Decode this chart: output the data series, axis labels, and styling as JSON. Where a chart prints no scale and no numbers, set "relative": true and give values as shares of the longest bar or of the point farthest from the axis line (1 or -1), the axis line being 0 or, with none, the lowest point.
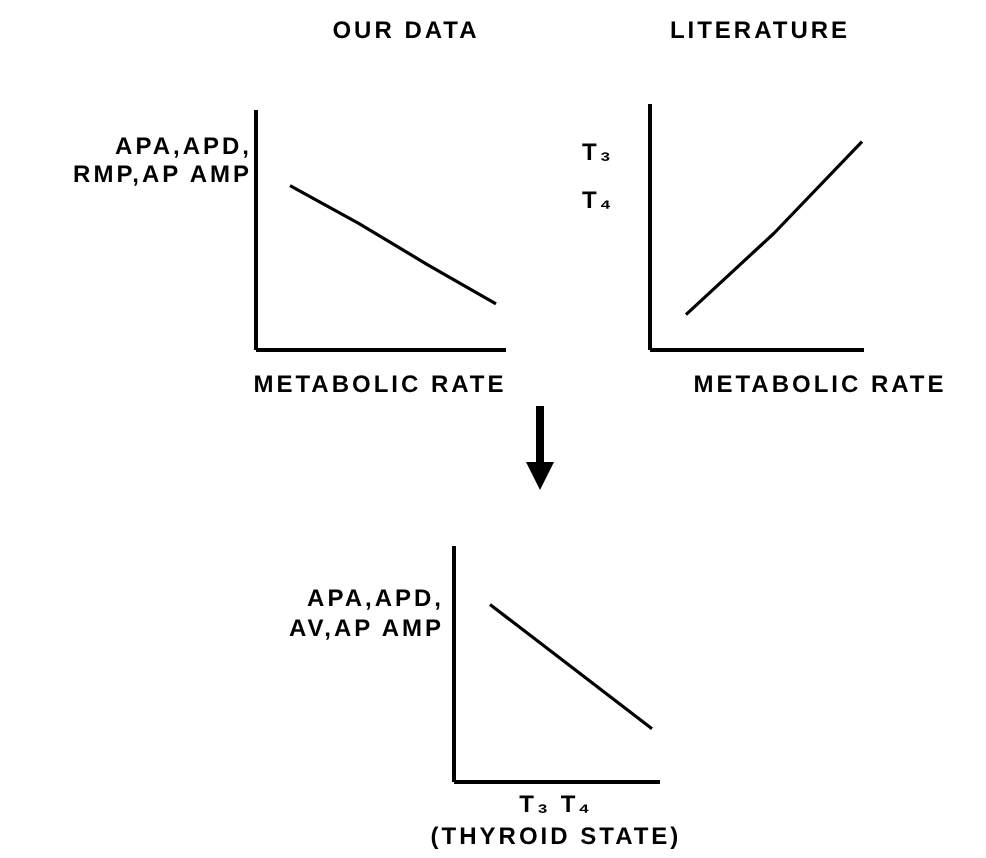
{
  "chart_data": [
    {
      "type": "line",
      "title": "OUR DATA",
      "xlabel": "METABOLIC RATE",
      "ylabel": "APA,APD,\nRMP,AP AMP",
      "relative": true,
      "marker": "none",
      "categories": [
        null,
        null,
        null,
        null
      ],
      "series": [
        {
          "color": "#000000",
          "values": [
            1,
            0.77,
            0.52,
            0.28
          ]
        }
      ]
    },
    {
      "type": "line",
      "title": "LITERATURE",
      "xlabel": "METABOLIC RATE",
      "ylabel": "T₃\nT₄",
      "relative": true,
      "marker": "none",
      "categories": [
        null,
        null,
        null
      ],
      "series": [
        {
          "color": "#000000",
          "values": [
            0.17,
            0.56,
            1
          ]
        }
      ]
    },
    {
      "type": "line",
      "xlabel": "T₃ T₄\n(THYROID STATE)",
      "ylabel": "APA,APD,\nAV,AP AMP",
      "relative": true,
      "marker": "none",
      "categories": [
        null,
        null
      ],
      "series": [
        {
          "color": "#000000",
          "values": [
            1,
            0.3
          ]
        }
      ]
    }
  ]
}
